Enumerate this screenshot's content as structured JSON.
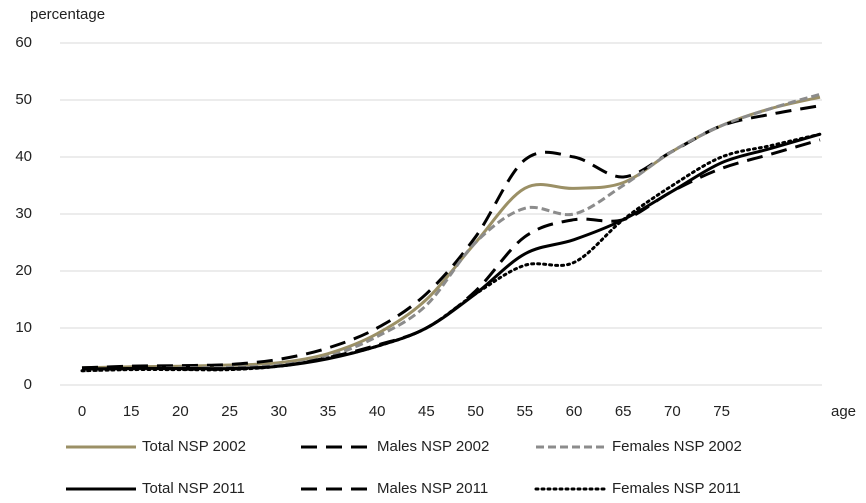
{
  "chart_data": {
    "type": "line",
    "y_label": "percentage",
    "x_label": "age",
    "categories": [
      "0",
      "15",
      "20",
      "25",
      "30",
      "35",
      "40",
      "45",
      "50",
      "55",
      "60",
      "65",
      "70",
      "75",
      null,
      null
    ],
    "ylim": [
      0,
      60
    ],
    "yticks": [
      0,
      10,
      20,
      30,
      40,
      50,
      60
    ],
    "grid": true,
    "series": [
      {
        "name": "Total NSP 2002",
        "color": "#9b9066",
        "dash": "solid",
        "values": [
          3,
          3.2,
          3.3,
          3.5,
          3.9,
          5.5,
          9,
          15,
          25,
          34.5,
          34.5,
          35.5,
          41,
          45.5,
          48.5,
          50.5
        ]
      },
      {
        "name": "Males NSP 2002",
        "color": "#000000",
        "dash": "dash",
        "values": [
          3,
          3.3,
          3.4,
          3.6,
          4.5,
          6.5,
          10,
          16,
          26,
          39.5,
          40,
          36.5,
          41,
          45.5,
          47.5,
          49
        ]
      },
      {
        "name": "Females NSP 2002",
        "color": "#8c8c8c",
        "dash": "shortdash",
        "values": [
          2.5,
          2.8,
          3,
          3.1,
          3.5,
          5,
          8.5,
          14,
          25,
          31,
          30,
          35,
          41,
          45.5,
          48.5,
          51
        ]
      },
      {
        "name": "Total NSP 2011",
        "color": "#000000",
        "dash": "solid",
        "values": [
          2.8,
          2.9,
          2.9,
          2.9,
          3.3,
          4.6,
          6.8,
          10,
          16,
          23,
          25.5,
          29,
          34,
          39,
          41.5,
          44
        ]
      },
      {
        "name": "Males NSP 2011",
        "color": "#000000",
        "dash": "dash",
        "values": [
          3,
          3.1,
          2.8,
          2.8,
          3.3,
          4.8,
          7,
          10,
          16.5,
          26,
          29,
          29,
          34,
          38,
          40.5,
          43
        ]
      },
      {
        "name": "Females NSP 2011",
        "color": "#000000",
        "dash": "dot",
        "values": [
          2.5,
          2.7,
          2.7,
          2.7,
          3.3,
          4.7,
          6.8,
          10,
          16,
          21,
          21.5,
          29,
          35,
          40,
          42,
          44
        ]
      }
    ]
  }
}
